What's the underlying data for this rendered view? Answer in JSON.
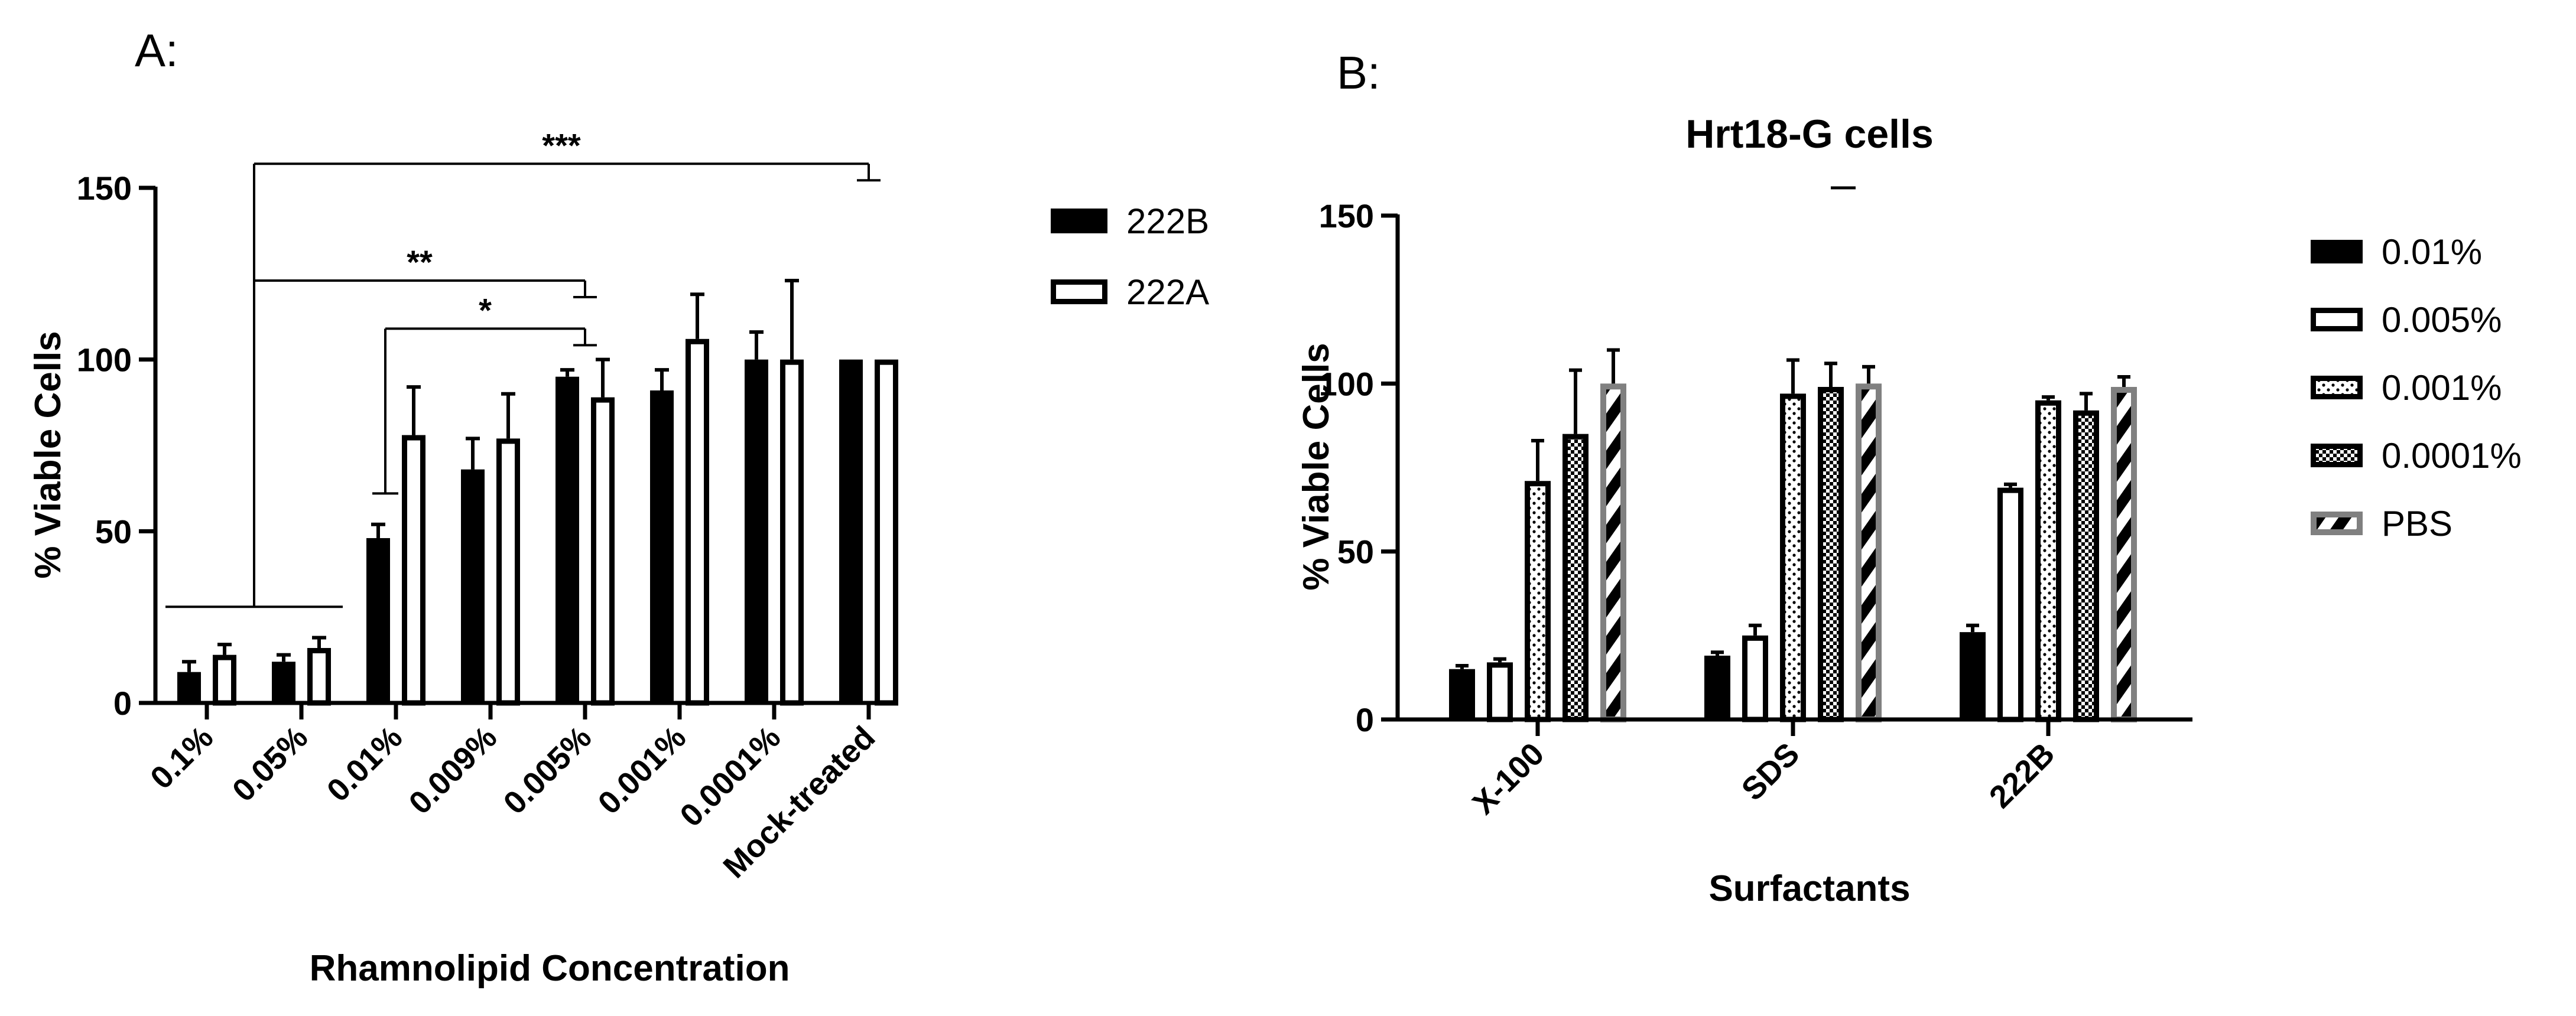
{
  "chart_data": [
    {
      "type": "bar",
      "panel_label": "A:",
      "title": "",
      "xlabel": "Rhamnolipid Concentration",
      "ylabel": "% Viable Cells",
      "ylim": [
        0,
        150
      ],
      "yticks": [
        0,
        50,
        100,
        150
      ],
      "grid": false,
      "legend_position": "right",
      "categories": [
        "0.1%",
        "0.05%",
        "0.01%",
        "0.009%",
        "0.005%",
        "0.001%",
        "0.0001%",
        "Mock-treated"
      ],
      "series": [
        {
          "name": "222B",
          "pattern": "solid",
          "values": [
            9,
            12,
            48,
            68,
            95,
            91,
            100,
            100
          ],
          "errors": [
            3,
            2,
            4,
            9,
            2,
            6,
            8,
            0
          ]
        },
        {
          "name": "222A",
          "pattern": "open",
          "values": [
            14,
            16,
            78,
            77,
            89,
            106,
            100,
            100
          ],
          "errors": [
            3,
            3,
            14,
            13,
            11,
            13,
            23,
            0
          ]
        }
      ],
      "significance": [
        {
          "label": "***",
          "from": [
            0,
            1
          ],
          "to": 7,
          "y": 157
        },
        {
          "label": "**",
          "from": [
            0,
            1
          ],
          "to": 4,
          "y": 123
        },
        {
          "label": "*",
          "from": 2,
          "to": 4,
          "y": 109
        }
      ]
    },
    {
      "type": "bar",
      "panel_label": "B:",
      "title": "Hrt18-G cells",
      "xlabel": "Surfactants",
      "ylabel": "% Viable Cells",
      "ylim": [
        0,
        150
      ],
      "yticks": [
        0,
        50,
        100,
        150
      ],
      "grid": false,
      "legend_position": "right",
      "categories": [
        "X-100",
        "SDS",
        "222B"
      ],
      "series": [
        {
          "name": "0.01%",
          "pattern": "solid",
          "values": [
            15,
            19,
            26
          ],
          "errors": [
            1,
            1,
            2
          ]
        },
        {
          "name": "0.005%",
          "pattern": "open",
          "values": [
            17,
            25,
            69
          ],
          "errors": [
            1,
            3,
            1
          ]
        },
        {
          "name": "0.001%",
          "pattern": "dots",
          "values": [
            71,
            97,
            95
          ],
          "errors": [
            12,
            10,
            1
          ]
        },
        {
          "name": "0.0001%",
          "pattern": "checker",
          "values": [
            85,
            99,
            92
          ],
          "errors": [
            19,
            7,
            5
          ]
        },
        {
          "name": "PBS",
          "pattern": "stripes",
          "values": [
            100,
            100,
            99
          ],
          "errors": [
            10,
            5,
            3
          ]
        }
      ]
    }
  ]
}
